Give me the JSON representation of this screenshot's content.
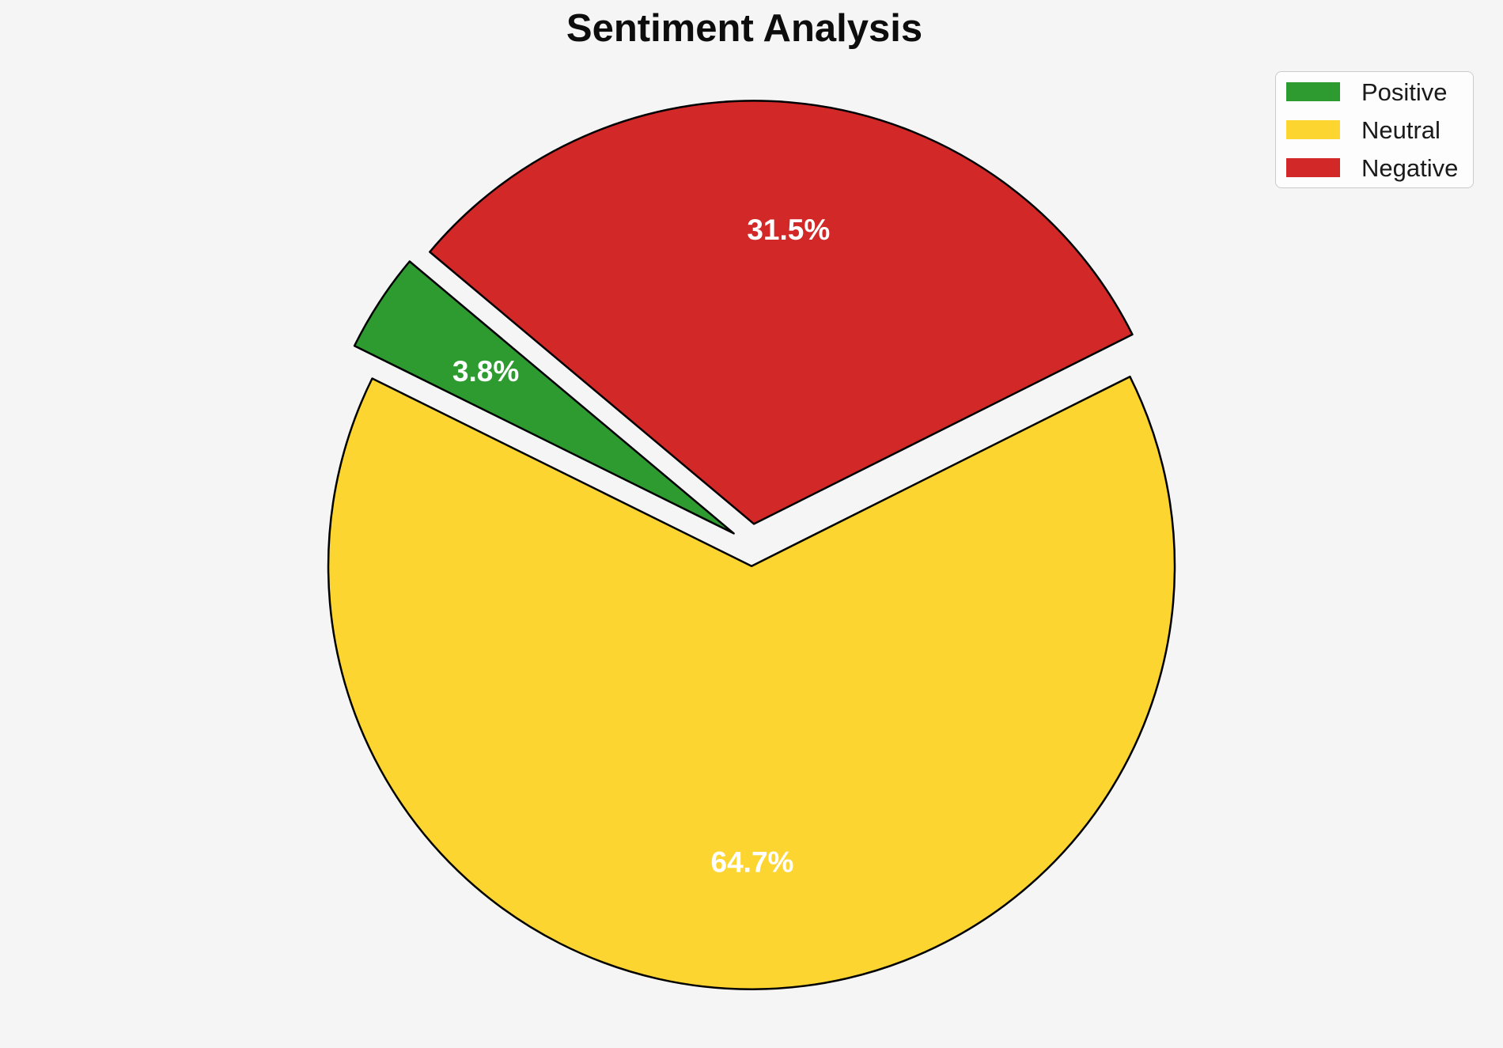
{
  "title": "Sentiment Analysis",
  "background_color": "#f5f5f5",
  "chart_data": {
    "type": "pie",
    "title": "Sentiment Analysis",
    "labels": [
      "Positive",
      "Neutral",
      "Negative"
    ],
    "values": [
      3.8,
      64.7,
      31.5
    ],
    "autopct_labels": [
      "3.8%",
      "64.7%",
      "31.5%"
    ],
    "colors": [
      "#2E9B31",
      "#FDD531",
      "#D32828"
    ],
    "edge_color": "#000000",
    "pct_label_color": "#ffffff",
    "start_angle": 140,
    "counterclock": true,
    "explode": 0.05,
    "pctdistance": 0.7,
    "legend": {
      "position": "upper right",
      "entries": [
        "Positive",
        "Neutral",
        "Negative"
      ]
    }
  }
}
